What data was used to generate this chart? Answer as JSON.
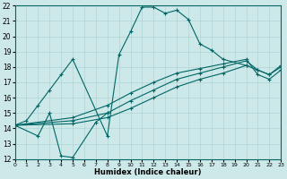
{
  "xlabel": "Humidex (Indice chaleur)",
  "xlim": [
    0,
    23
  ],
  "ylim": [
    12,
    22
  ],
  "xticks": [
    0,
    1,
    2,
    3,
    4,
    5,
    6,
    7,
    8,
    9,
    10,
    11,
    12,
    13,
    14,
    15,
    16,
    17,
    18,
    19,
    20,
    21,
    22,
    23
  ],
  "yticks": [
    12,
    13,
    14,
    15,
    16,
    17,
    18,
    19,
    20,
    21,
    22
  ],
  "bg_color": "#cde8e8",
  "line_color": "#006666",
  "grid_color": "#b0d4d4",
  "line1_x": [
    0,
    1,
    2,
    3,
    4,
    5,
    8,
    9,
    10,
    11,
    12,
    13,
    14,
    15,
    16,
    17,
    18,
    20
  ],
  "line1_y": [
    14.2,
    14.5,
    15.5,
    16.5,
    17.5,
    18.5,
    13.5,
    18.8,
    20.3,
    21.9,
    21.9,
    21.5,
    21.7,
    21.1,
    19.5,
    19.1,
    18.5,
    18.1
  ],
  "line2_x": [
    0,
    2,
    3,
    4,
    5,
    7,
    8
  ],
  "line2_y": [
    14.2,
    13.5,
    15.0,
    12.2,
    12.1,
    14.4,
    15.0
  ],
  "line3_x": [
    0,
    5,
    8,
    10,
    12,
    14,
    16,
    18,
    20,
    21,
    22,
    23
  ],
  "line3_y": [
    14.2,
    14.3,
    14.7,
    15.3,
    16.0,
    16.7,
    17.2,
    17.6,
    18.1,
    17.8,
    17.5,
    18.1
  ],
  "line4_x": [
    0,
    5,
    8,
    10,
    12,
    14,
    16,
    18,
    20,
    21,
    22,
    23
  ],
  "line4_y": [
    14.2,
    14.5,
    15.0,
    15.8,
    16.5,
    17.2,
    17.6,
    18.0,
    18.4,
    17.8,
    17.5,
    18.0
  ],
  "line5_x": [
    0,
    5,
    8,
    10,
    12,
    14,
    16,
    18,
    20,
    21,
    22,
    23
  ],
  "line5_y": [
    14.2,
    14.7,
    15.5,
    16.3,
    17.0,
    17.6,
    17.9,
    18.2,
    18.5,
    17.5,
    17.2,
    17.8
  ]
}
